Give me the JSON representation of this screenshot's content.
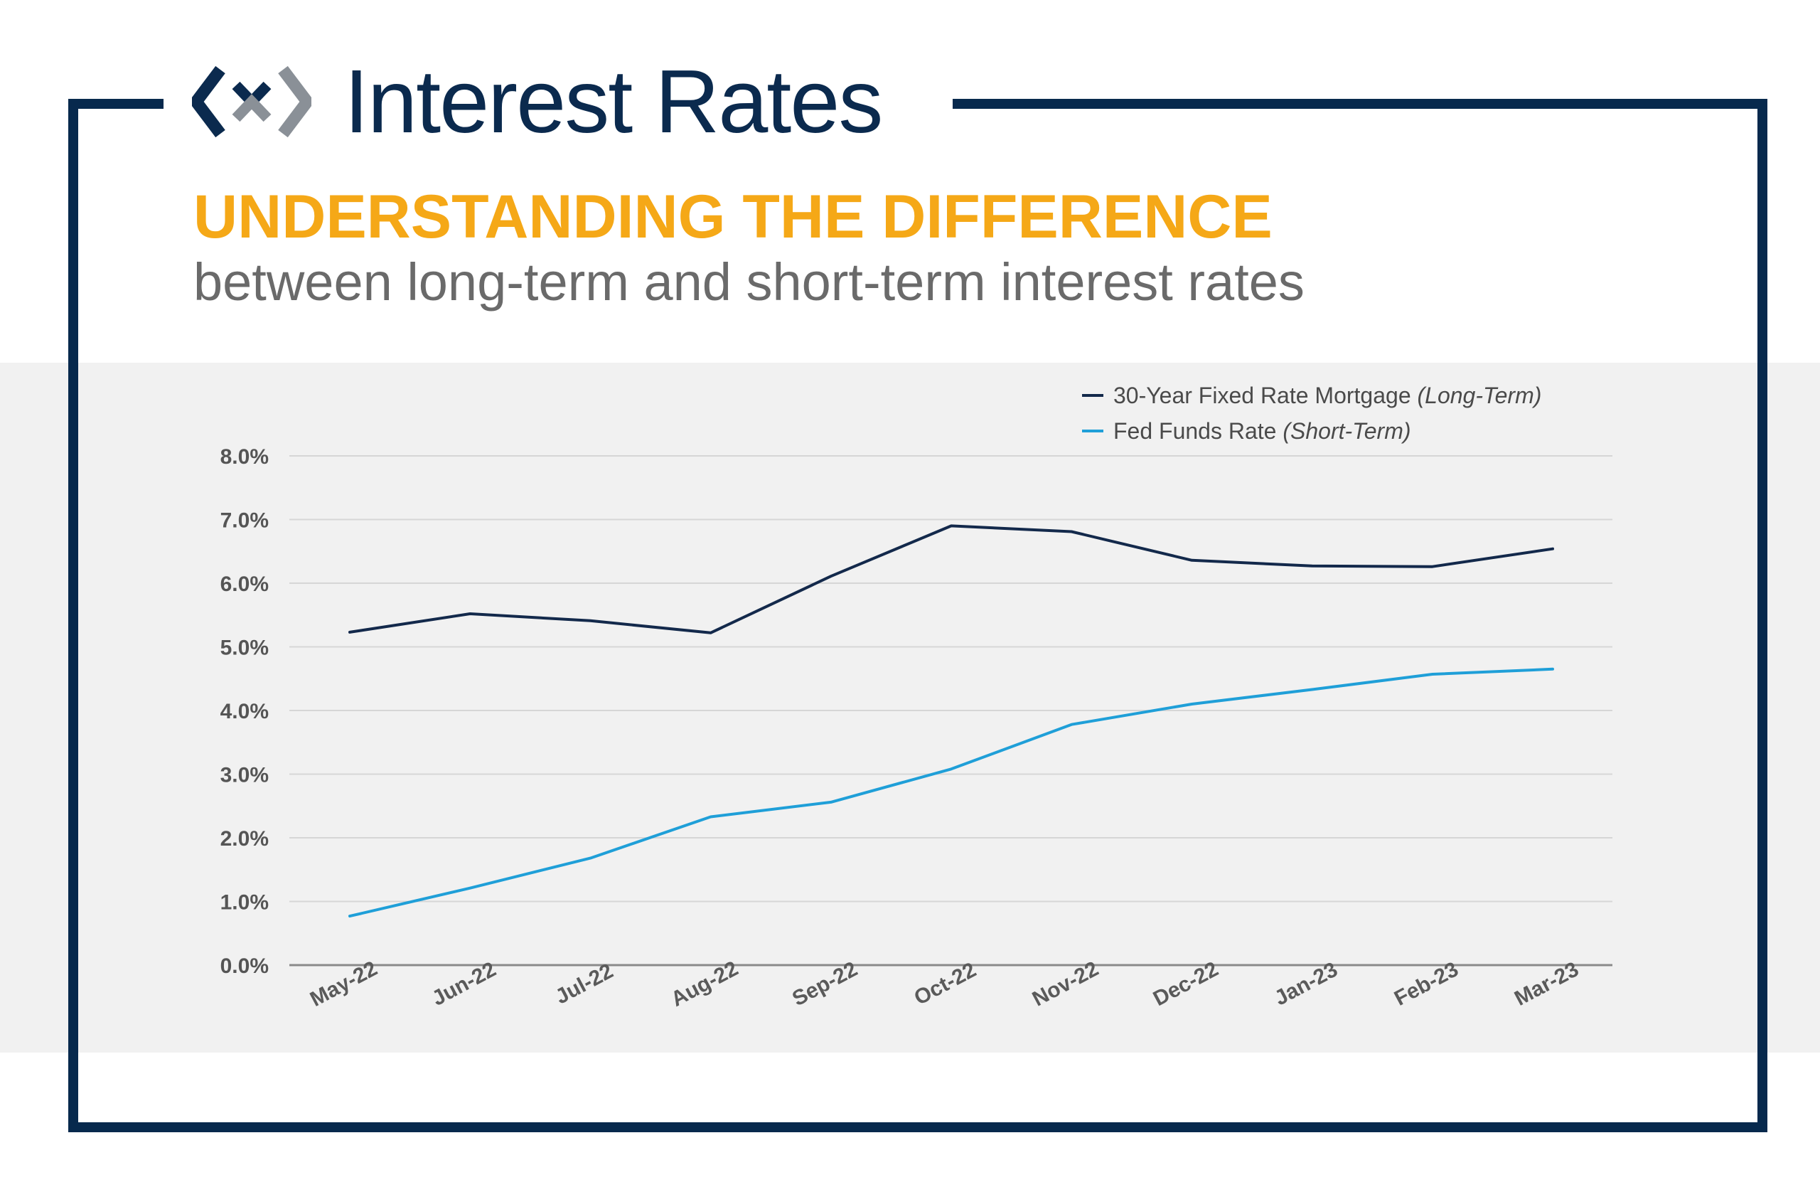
{
  "header": {
    "title": "Interest Rates",
    "headline": "UNDERSTANDING THE DIFFERENCE",
    "subhead": "between long-term and short-term interest rates"
  },
  "colors": {
    "frame": "#07294d",
    "headline": "#f5a817",
    "subhead": "#6a6a6a",
    "long_term_series": "#13294b",
    "short_term_series": "#1f9fd8",
    "chart_background": "#f1f1f1"
  },
  "chart_data": {
    "type": "line",
    "title": "",
    "xlabel": "",
    "ylabel": "",
    "categories": [
      "May-22",
      "Jun-22",
      "Jul-22",
      "Aug-22",
      "Sep-22",
      "Oct-22",
      "Nov-22",
      "Dec-22",
      "Jan-23",
      "Feb-23",
      "Mar-23"
    ],
    "ylim": [
      0,
      8
    ],
    "yticks": [
      "0.0%",
      "1.0%",
      "2.0%",
      "3.0%",
      "4.0%",
      "5.0%",
      "6.0%",
      "7.0%",
      "8.0%"
    ],
    "grid": true,
    "legend_position": "top-right",
    "series": [
      {
        "name": "30-Year Fixed Rate Mortgage",
        "name_suffix": "(Long-Term)",
        "color": "#13294b",
        "values": [
          5.23,
          5.52,
          5.41,
          5.22,
          6.11,
          6.9,
          6.81,
          6.36,
          6.27,
          6.26,
          6.54
        ]
      },
      {
        "name": "Fed Funds Rate",
        "name_suffix": "(Short-Term)",
        "color": "#1f9fd8",
        "values": [
          0.77,
          1.21,
          1.68,
          2.33,
          2.56,
          3.08,
          3.78,
          4.1,
          4.33,
          4.57,
          4.65
        ]
      }
    ]
  }
}
